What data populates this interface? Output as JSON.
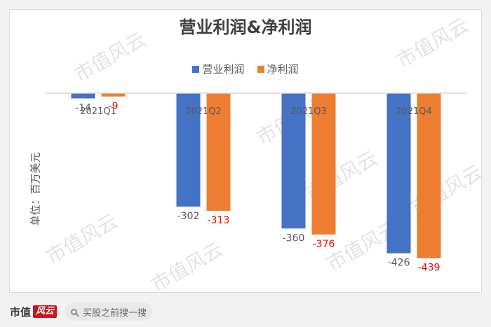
{
  "watermark_text": "市值风云",
  "brand": {
    "name": "市值",
    "mark": "风云"
  },
  "search": {
    "placeholder": "买股之前搜一搜"
  },
  "colors": {
    "operating": "#4472c4",
    "net": "#ed7d31",
    "net_label": "#ff0000",
    "axis": "#d9d9d9",
    "text": "#595959"
  },
  "chart_data": {
    "type": "bar",
    "title": "营业利润&净利润",
    "ylabel": "单位：百万美元",
    "xlabel": "",
    "categories": [
      "2021Q1",
      "2021Q2",
      "2021Q3",
      "2021Q4"
    ],
    "series": [
      {
        "name": "营业利润",
        "values": [
          -14,
          -302,
          -360,
          -426
        ]
      },
      {
        "name": "净利润",
        "values": [
          -9,
          -313,
          -376,
          -439
        ]
      }
    ],
    "ylim": [
      -460,
      0
    ],
    "legend": "top-center",
    "data_labels": true,
    "grid": false
  }
}
